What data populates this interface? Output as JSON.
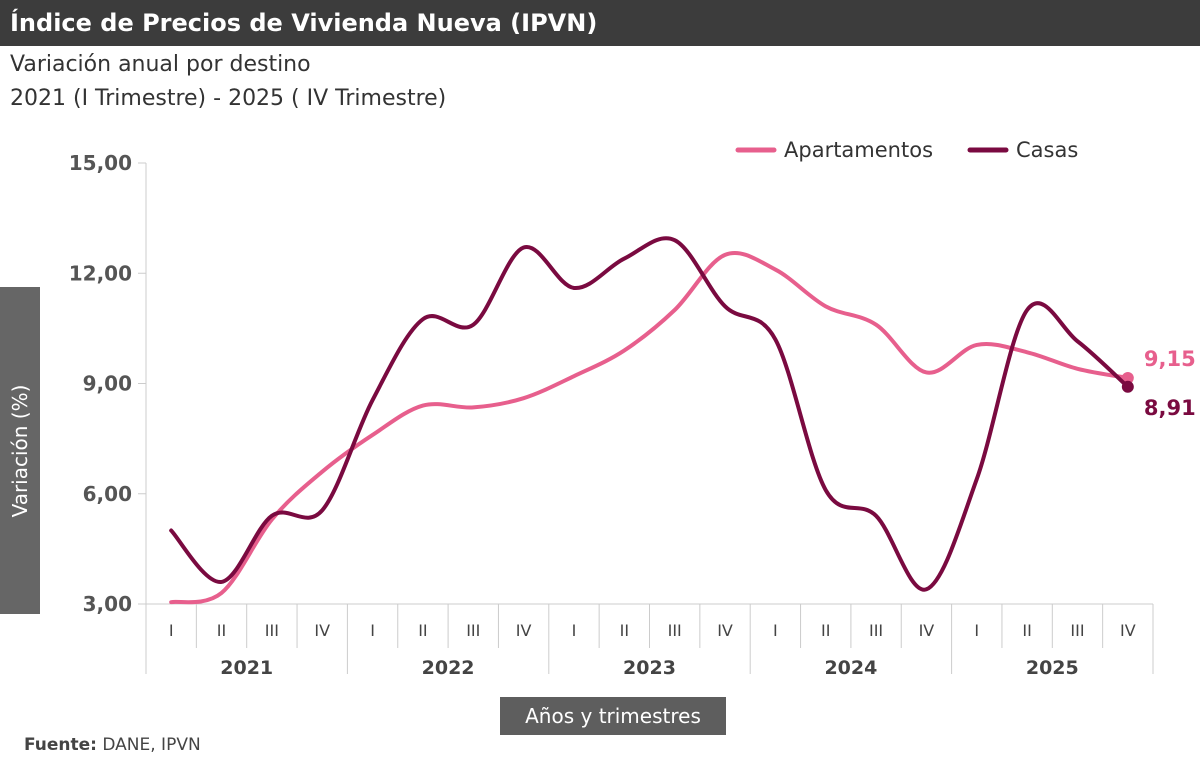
{
  "header": {
    "title": "Índice de Precios de Vivienda Nueva  (IPVN)"
  },
  "subtitle1": "Variación anual por destino",
  "subtitle2": "2021 (I Trimestre) - 2025 ( IV Trimestre)",
  "source": {
    "label": "Fuente:",
    "value": " DANE, IPVN"
  },
  "chart_data": {
    "type": "line",
    "ylabel": "Variación (%)",
    "xlabel": "Años y trimestres",
    "ylim": [
      3,
      15
    ],
    "yticks": [
      "3,00",
      "6,00",
      "9,00",
      "12,00",
      "15,00"
    ],
    "ytick_values": [
      3,
      6,
      9,
      12,
      15
    ],
    "years": [
      "2021",
      "2022",
      "2023",
      "2024",
      "2025"
    ],
    "quarters": [
      "I",
      "II",
      "III",
      "IV"
    ],
    "legend_position": "top-right",
    "grid": false,
    "series": [
      {
        "name": "Apartamentos",
        "color": "#e75f8d",
        "last_label": "9,15",
        "values": [
          3.05,
          3.3,
          5.3,
          6.6,
          7.6,
          8.4,
          8.35,
          8.6,
          9.2,
          9.9,
          11.0,
          12.5,
          12.1,
          11.1,
          10.6,
          9.3,
          10.05,
          9.85,
          9.4,
          9.15
        ]
      },
      {
        "name": "Casas",
        "color": "#7a0a40",
        "last_label": "8,91",
        "values": [
          5.0,
          3.6,
          5.4,
          5.55,
          8.55,
          10.75,
          10.6,
          12.7,
          11.6,
          12.4,
          12.9,
          11.1,
          10.2,
          6.1,
          5.4,
          3.4,
          6.4,
          11.0,
          10.15,
          8.91
        ]
      }
    ]
  }
}
